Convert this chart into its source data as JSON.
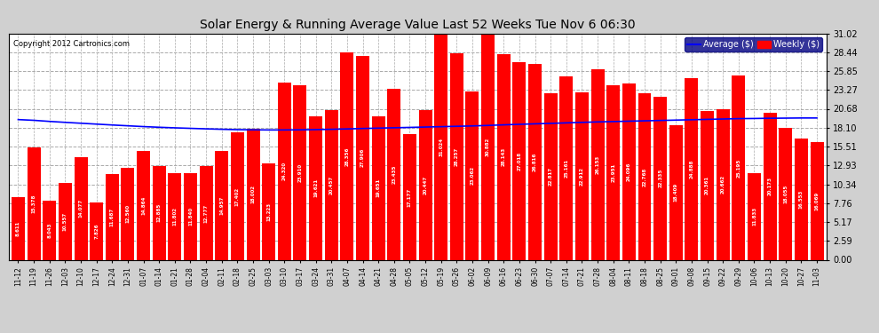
{
  "title": "Solar Energy & Running Average Value Last 52 Weeks Tue Nov 6 06:30",
  "copyright": "Copyright 2012 Cartronics.com",
  "background_color": "#d0d0d0",
  "plot_bg_color": "#ffffff",
  "bar_color": "#ff0000",
  "line_color": "#0000ff",
  "ylim": [
    0,
    31.02
  ],
  "yticks": [
    0.0,
    2.59,
    5.17,
    7.76,
    10.34,
    12.93,
    15.51,
    18.1,
    20.68,
    23.27,
    25.85,
    28.44,
    31.02
  ],
  "categories": [
    "11-12",
    "11-19",
    "11-26",
    "12-03",
    "12-10",
    "12-17",
    "12-24",
    "12-31",
    "01-07",
    "01-14",
    "01-21",
    "01-28",
    "02-04",
    "02-11",
    "02-18",
    "02-25",
    "03-03",
    "03-10",
    "03-17",
    "03-24",
    "03-31",
    "04-07",
    "04-14",
    "04-21",
    "04-28",
    "05-05",
    "05-12",
    "05-19",
    "05-26",
    "06-02",
    "06-09",
    "06-16",
    "06-23",
    "06-30",
    "07-07",
    "07-14",
    "07-21",
    "07-28",
    "08-04",
    "08-11",
    "08-18",
    "08-25",
    "09-01",
    "09-08",
    "09-15",
    "09-22",
    "09-29",
    "10-06",
    "10-13",
    "10-20",
    "10-27",
    "11-03"
  ],
  "weekly_values": [
    8.611,
    15.378,
    8.043,
    10.557,
    14.077,
    7.826,
    11.687,
    12.56,
    14.864,
    12.885,
    11.802,
    11.84,
    12.777,
    14.957,
    17.402,
    18.002,
    13.223,
    24.32,
    23.91,
    19.621,
    20.457,
    28.356,
    27.906,
    19.651,
    23.435,
    17.177,
    20.447,
    31.024,
    28.257,
    23.062,
    30.882,
    28.143,
    27.018,
    26.816,
    22.817,
    25.161,
    22.912,
    26.153,
    23.951,
    24.096,
    22.768,
    22.335,
    18.409,
    24.888,
    20.361,
    20.662,
    25.195,
    11.833,
    20.173,
    18.055,
    16.553,
    16.069
  ],
  "avg_values": [
    19.2,
    19.1,
    18.95,
    18.82,
    18.7,
    18.58,
    18.46,
    18.35,
    18.24,
    18.15,
    18.07,
    18.0,
    17.93,
    17.87,
    17.82,
    17.8,
    17.78,
    17.78,
    17.8,
    17.83,
    17.87,
    17.92,
    17.98,
    18.03,
    18.08,
    18.13,
    18.18,
    18.23,
    18.28,
    18.33,
    18.4,
    18.48,
    18.55,
    18.62,
    18.68,
    18.75,
    18.82,
    18.88,
    18.93,
    18.98,
    19.03,
    19.08,
    19.13,
    19.18,
    19.23,
    19.28,
    19.33,
    19.35,
    19.38,
    19.4,
    19.42,
    19.42
  ]
}
